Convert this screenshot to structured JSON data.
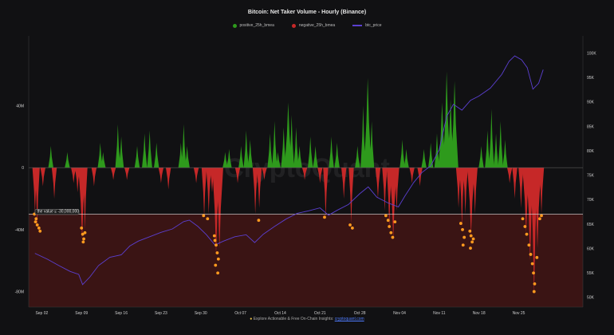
{
  "chart_data": {
    "type": "bar",
    "title": "Bitcoin: Net Taker Volume - Hourly (Binance)",
    "legend": [
      "positive_25h_bmea",
      "negative_25h_bmea",
      "btc_price"
    ],
    "colors": {
      "positive": "#2e9a1c",
      "negative": "#c62828",
      "price": "#5b3fd0",
      "highlight": "#ff9a1f",
      "threshold_fill": "#3a1414"
    },
    "ylim_left": [
      -90000000,
      85000000
    ],
    "y_ticks_left": [
      {
        "v": 40000000,
        "label": "40M"
      },
      {
        "v": 0,
        "label": "0"
      },
      {
        "v": -40000000,
        "label": "-40M"
      },
      {
        "v": -80000000,
        "label": "-80M"
      }
    ],
    "ylim_right": [
      48000,
      103500
    ],
    "y_ticks_right": [
      {
        "v": 100000,
        "label": "100K"
      },
      {
        "v": 95000,
        "label": "95K"
      },
      {
        "v": 90000,
        "label": "90K"
      },
      {
        "v": 85000,
        "label": "85K"
      },
      {
        "v": 80000,
        "label": "80K"
      },
      {
        "v": 75000,
        "label": "75K"
      },
      {
        "v": 70000,
        "label": "70K"
      },
      {
        "v": 65000,
        "label": "65K"
      },
      {
        "v": 60000,
        "label": "60K"
      },
      {
        "v": 55000,
        "label": "55K"
      },
      {
        "v": 50000,
        "label": "50K"
      }
    ],
    "x_range_days": [
      -2.3,
      95.3
    ],
    "x_ticks": [
      {
        "d": 0,
        "label": "Sep 02"
      },
      {
        "d": 7,
        "label": "Sep 09"
      },
      {
        "d": 14,
        "label": "Sep 16"
      },
      {
        "d": 21,
        "label": "Sep 23"
      },
      {
        "d": 28,
        "label": "Sep 30"
      },
      {
        "d": 35,
        "label": "Oct 07"
      },
      {
        "d": 42,
        "label": "Oct 14"
      },
      {
        "d": 49,
        "label": "Oct 21"
      },
      {
        "d": 56,
        "label": "Oct 28"
      },
      {
        "d": 63,
        "label": "Nov 04"
      },
      {
        "d": 70,
        "label": "Nov 11"
      },
      {
        "d": 77,
        "label": "Nov 18"
      },
      {
        "d": 84,
        "label": "Nov 25"
      }
    ],
    "threshold": {
      "value": -30000000,
      "label": "the value ≤ -30,000,000"
    },
    "watermark": "CryptoQuant",
    "bars": [
      {
        "d": -1.2,
        "v": -30000000
      },
      {
        "d": -0.8,
        "v": -38000000
      },
      {
        "d": 0.2,
        "v": -12000000
      },
      {
        "d": 1.6,
        "v": 14000000
      },
      {
        "d": 2.2,
        "v": -20000000
      },
      {
        "d": 4.5,
        "v": 10000000
      },
      {
        "d": 5.6,
        "v": -10000000
      },
      {
        "d": 6.3,
        "v": -16000000
      },
      {
        "d": 7.1,
        "v": -46000000
      },
      {
        "d": 7.6,
        "v": -40000000
      },
      {
        "d": 9.2,
        "v": -12000000
      },
      {
        "d": 10.3,
        "v": 16000000
      },
      {
        "d": 10.8,
        "v": 10000000
      },
      {
        "d": 12.6,
        "v": -8000000
      },
      {
        "d": 13.4,
        "v": 28000000
      },
      {
        "d": 14.0,
        "v": 20000000
      },
      {
        "d": 15.0,
        "v": -8000000
      },
      {
        "d": 16.8,
        "v": 14000000
      },
      {
        "d": 18.1,
        "v": 22000000
      },
      {
        "d": 19.0,
        "v": 24000000
      },
      {
        "d": 20.2,
        "v": 16000000
      },
      {
        "d": 21.0,
        "v": -10000000
      },
      {
        "d": 22.3,
        "v": -14000000
      },
      {
        "d": 24.5,
        "v": 16000000
      },
      {
        "d": 25.0,
        "v": 28000000
      },
      {
        "d": 25.6,
        "v": 14000000
      },
      {
        "d": 27.2,
        "v": -10000000
      },
      {
        "d": 28.6,
        "v": -32000000
      },
      {
        "d": 29.4,
        "v": -30000000
      },
      {
        "d": 30.0,
        "v": -16000000
      },
      {
        "d": 30.7,
        "v": -56000000
      },
      {
        "d": 31.3,
        "v": -52000000
      },
      {
        "d": 32.3,
        "v": 10000000
      },
      {
        "d": 33.0,
        "v": 12000000
      },
      {
        "d": 34.5,
        "v": -10000000
      },
      {
        "d": 35.1,
        "v": 14000000
      },
      {
        "d": 36.0,
        "v": 24000000
      },
      {
        "d": 36.7,
        "v": 18000000
      },
      {
        "d": 37.6,
        "v": -30000000
      },
      {
        "d": 38.3,
        "v": -26000000
      },
      {
        "d": 39.2,
        "v": -8000000
      },
      {
        "d": 40.2,
        "v": 22000000
      },
      {
        "d": 41.0,
        "v": 30000000
      },
      {
        "d": 41.6,
        "v": 10000000
      },
      {
        "d": 42.6,
        "v": 26000000
      },
      {
        "d": 43.4,
        "v": 42000000
      },
      {
        "d": 44.0,
        "v": 34000000
      },
      {
        "d": 44.8,
        "v": 26000000
      },
      {
        "d": 45.4,
        "v": 14000000
      },
      {
        "d": 46.3,
        "v": -8000000
      },
      {
        "d": 47.3,
        "v": 20000000
      },
      {
        "d": 48.2,
        "v": 14000000
      },
      {
        "d": 49.0,
        "v": -10000000
      },
      {
        "d": 50.0,
        "v": -32000000
      },
      {
        "d": 51.0,
        "v": 20000000
      },
      {
        "d": 52.0,
        "v": 16000000
      },
      {
        "d": 53.2,
        "v": -20000000
      },
      {
        "d": 54.5,
        "v": -36000000
      },
      {
        "d": 55.6,
        "v": 14000000
      },
      {
        "d": 56.6,
        "v": 40000000
      },
      {
        "d": 57.4,
        "v": 58000000
      },
      {
        "d": 58.1,
        "v": 30000000
      },
      {
        "d": 59.2,
        "v": -20000000
      },
      {
        "d": 60.4,
        "v": -28000000
      },
      {
        "d": 61.2,
        "v": -40000000
      },
      {
        "d": 61.9,
        "v": -46000000
      },
      {
        "d": 62.5,
        "v": -28000000
      },
      {
        "d": 63.5,
        "v": 18000000
      },
      {
        "d": 64.2,
        "v": 12000000
      },
      {
        "d": 65.2,
        "v": -10000000
      },
      {
        "d": 66.6,
        "v": -12000000
      },
      {
        "d": 67.3,
        "v": 12000000
      },
      {
        "d": 68.5,
        "v": 16000000
      },
      {
        "d": 69.6,
        "v": 22000000
      },
      {
        "d": 70.5,
        "v": 42000000
      },
      {
        "d": 71.3,
        "v": 62000000
      },
      {
        "d": 72.0,
        "v": 44000000
      },
      {
        "d": 72.7,
        "v": 56000000
      },
      {
        "d": 73.4,
        "v": -26000000
      },
      {
        "d": 74.0,
        "v": -38000000
      },
      {
        "d": 74.6,
        "v": -30000000
      },
      {
        "d": 75.6,
        "v": -44000000
      },
      {
        "d": 76.3,
        "v": -30000000
      },
      {
        "d": 77.4,
        "v": 14000000
      },
      {
        "d": 78.5,
        "v": 24000000
      },
      {
        "d": 79.2,
        "v": 38000000
      },
      {
        "d": 80.0,
        "v": 22000000
      },
      {
        "d": 80.8,
        "v": 30000000
      },
      {
        "d": 81.6,
        "v": 18000000
      },
      {
        "d": 82.4,
        "v": -10000000
      },
      {
        "d": 83.3,
        "v": -20000000
      },
      {
        "d": 84.4,
        "v": -26000000
      },
      {
        "d": 85.3,
        "v": -42000000
      },
      {
        "d": 86.0,
        "v": -60000000
      },
      {
        "d": 86.7,
        "v": -82000000
      },
      {
        "d": 87.3,
        "v": -52000000
      },
      {
        "d": 88.0,
        "v": -30000000
      }
    ],
    "price": [
      {
        "d": -1.2,
        "v": 59000
      },
      {
        "d": 1,
        "v": 57800
      },
      {
        "d": 3,
        "v": 56500
      },
      {
        "d": 5,
        "v": 55300
      },
      {
        "d": 6.5,
        "v": 54700
      },
      {
        "d": 7.2,
        "v": 52600
      },
      {
        "d": 8.5,
        "v": 54200
      },
      {
        "d": 10,
        "v": 56500
      },
      {
        "d": 12,
        "v": 58200
      },
      {
        "d": 14,
        "v": 58700
      },
      {
        "d": 15.5,
        "v": 60500
      },
      {
        "d": 17,
        "v": 61500
      },
      {
        "d": 19,
        "v": 62400
      },
      {
        "d": 21,
        "v": 63300
      },
      {
        "d": 23,
        "v": 64000
      },
      {
        "d": 25,
        "v": 65500
      },
      {
        "d": 26,
        "v": 65800
      },
      {
        "d": 27.5,
        "v": 64500
      },
      {
        "d": 29,
        "v": 62800
      },
      {
        "d": 30.5,
        "v": 60700
      },
      {
        "d": 32,
        "v": 61500
      },
      {
        "d": 34,
        "v": 62400
      },
      {
        "d": 36,
        "v": 62800
      },
      {
        "d": 37.5,
        "v": 61200
      },
      {
        "d": 39,
        "v": 62900
      },
      {
        "d": 41,
        "v": 64500
      },
      {
        "d": 43,
        "v": 66000
      },
      {
        "d": 45,
        "v": 67200
      },
      {
        "d": 47,
        "v": 67700
      },
      {
        "d": 49,
        "v": 68300
      },
      {
        "d": 50.5,
        "v": 66800
      },
      {
        "d": 52,
        "v": 67800
      },
      {
        "d": 54,
        "v": 69000
      },
      {
        "d": 56,
        "v": 71200
      },
      {
        "d": 57.5,
        "v": 72600
      },
      {
        "d": 59,
        "v": 70500
      },
      {
        "d": 61,
        "v": 69300
      },
      {
        "d": 62.8,
        "v": 68500
      },
      {
        "d": 64,
        "v": 70800
      },
      {
        "d": 65.5,
        "v": 73500
      },
      {
        "d": 67,
        "v": 75600
      },
      {
        "d": 68.5,
        "v": 76900
      },
      {
        "d": 70,
        "v": 80200
      },
      {
        "d": 71.3,
        "v": 87000
      },
      {
        "d": 72.5,
        "v": 89500
      },
      {
        "d": 74,
        "v": 88300
      },
      {
        "d": 75.5,
        "v": 90300
      },
      {
        "d": 77,
        "v": 91200
      },
      {
        "d": 79,
        "v": 92800
      },
      {
        "d": 81,
        "v": 95600
      },
      {
        "d": 82.3,
        "v": 98300
      },
      {
        "d": 83.3,
        "v": 99400
      },
      {
        "d": 84.5,
        "v": 98600
      },
      {
        "d": 85.5,
        "v": 97000
      },
      {
        "d": 86.5,
        "v": 92600
      },
      {
        "d": 87.5,
        "v": 93800
      },
      {
        "d": 88.3,
        "v": 96600
      }
    ],
    "highlights": [
      {
        "d": -1.3,
        "v": -30000000
      },
      {
        "d": -1.0,
        "v": -33000000
      },
      {
        "d": -0.8,
        "v": -37000000
      },
      {
        "d": -0.5,
        "v": -39000000
      },
      {
        "d": -1.1,
        "v": -35000000
      },
      {
        "d": -0.3,
        "v": -41000000
      },
      {
        "d": 7.0,
        "v": -39000000
      },
      {
        "d": 7.2,
        "v": -43000000
      },
      {
        "d": 7.4,
        "v": -46000000
      },
      {
        "d": 7.6,
        "v": -42000000
      },
      {
        "d": 7.3,
        "v": -48000000
      },
      {
        "d": 28.5,
        "v": -31000000
      },
      {
        "d": 29.2,
        "v": -33000000
      },
      {
        "d": 30.4,
        "v": -44000000
      },
      {
        "d": 30.7,
        "v": -50000000
      },
      {
        "d": 30.9,
        "v": -55000000
      },
      {
        "d": 31.1,
        "v": -59000000
      },
      {
        "d": 30.6,
        "v": -63000000
      },
      {
        "d": 31.0,
        "v": -68000000
      },
      {
        "d": 30.5,
        "v": -47000000
      },
      {
        "d": 38.2,
        "v": -34000000
      },
      {
        "d": 49.8,
        "v": -32000000
      },
      {
        "d": 54.3,
        "v": -37000000
      },
      {
        "d": 54.7,
        "v": -39000000
      },
      {
        "d": 60.6,
        "v": -31000000
      },
      {
        "d": 61.0,
        "v": -34000000
      },
      {
        "d": 61.2,
        "v": -38000000
      },
      {
        "d": 61.5,
        "v": -42000000
      },
      {
        "d": 61.8,
        "v": -45000000
      },
      {
        "d": 62.2,
        "v": -35000000
      },
      {
        "d": 73.8,
        "v": -36000000
      },
      {
        "d": 74.1,
        "v": -40000000
      },
      {
        "d": 74.4,
        "v": -45000000
      },
      {
        "d": 74.2,
        "v": -50000000
      },
      {
        "d": 75.4,
        "v": -41000000
      },
      {
        "d": 75.6,
        "v": -44000000
      },
      {
        "d": 75.8,
        "v": -48000000
      },
      {
        "d": 75.5,
        "v": -52000000
      },
      {
        "d": 76.0,
        "v": -46000000
      },
      {
        "d": 84.7,
        "v": -33000000
      },
      {
        "d": 85.1,
        "v": -38000000
      },
      {
        "d": 85.4,
        "v": -43000000
      },
      {
        "d": 85.8,
        "v": -50000000
      },
      {
        "d": 86.1,
        "v": -56000000
      },
      {
        "d": 86.4,
        "v": -62000000
      },
      {
        "d": 86.6,
        "v": -68000000
      },
      {
        "d": 86.8,
        "v": -75000000
      },
      {
        "d": 86.7,
        "v": -80000000
      },
      {
        "d": 87.2,
        "v": -58000000
      },
      {
        "d": 87.7,
        "v": -33000000
      },
      {
        "d": 88.0,
        "v": -31000000
      }
    ]
  },
  "footer": {
    "text": "Explore Actionable & Free On-Chain Insights:",
    "link": "cryptoquant.com"
  }
}
